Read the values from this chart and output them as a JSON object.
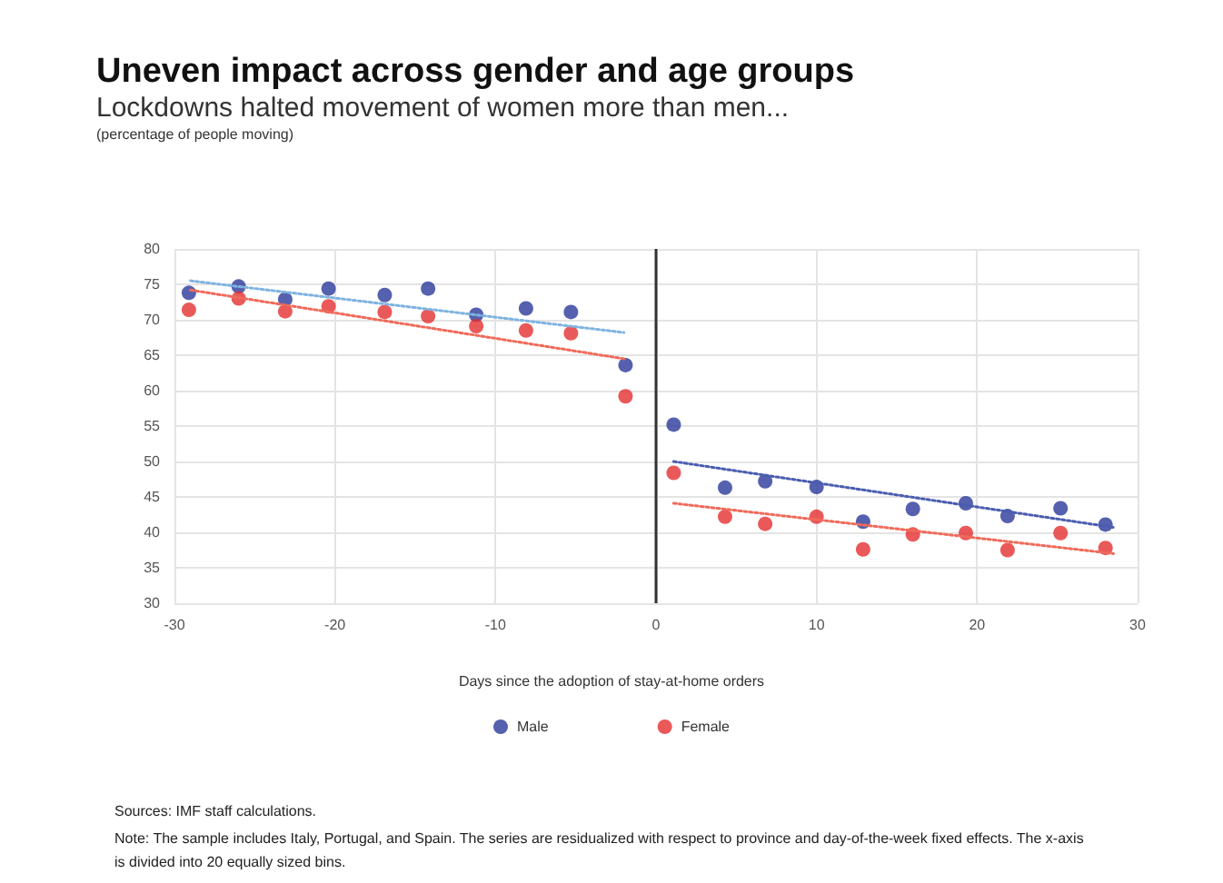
{
  "chart_data": {
    "type": "scatter",
    "title": "Uneven impact across gender and age groups",
    "subtitle": "Lockdowns halted movement of women more than men...",
    "xlabel": "Days since the adoption of stay-at-home orders",
    "annotations": [
      "(percentage of people moving)",
      "Sources: IMF staff calculations.",
      "Note: The sample includes Italy, Portugal, and Spain. The series are residualized with respect to province and day-of-the-week fixed effects. The x-axis is divided into 20 equally sized bins."
    ],
    "series": [
      {
        "name": "Male",
        "color": "#2b3a9a",
        "x": [
          -29.1,
          -26.0,
          -23.1,
          -20.4,
          -16.9,
          -14.2,
          -11.2,
          -8.1,
          -5.3,
          -1.9,
          1.1,
          4.3,
          6.8,
          10.0,
          12.9,
          16.0,
          19.3,
          21.9,
          25.2,
          28.0
        ],
        "values": [
          73.8,
          74.7,
          72.9,
          74.4,
          73.5,
          74.4,
          70.7,
          71.6,
          71.1,
          63.6,
          55.2,
          46.3,
          47.2,
          46.4,
          41.5,
          43.3,
          44.1,
          42.3,
          43.4,
          41.1
        ]
      },
      {
        "name": "Female",
        "color": "#e53030",
        "x": [
          -29.1,
          -26.0,
          -23.1,
          -20.4,
          -16.9,
          -14.2,
          -11.2,
          -8.1,
          -5.3,
          -1.9,
          1.1,
          4.3,
          6.8,
          10.0,
          12.9,
          16.0,
          19.3,
          21.9,
          25.2,
          28.0
        ],
        "values": [
          71.4,
          73.0,
          71.2,
          71.9,
          71.1,
          70.5,
          69.1,
          68.5,
          68.1,
          59.2,
          48.4,
          42.2,
          41.2,
          42.2,
          37.6,
          39.7,
          39.9,
          37.5,
          39.9,
          37.8
        ]
      },
      {
        "type": "line",
        "color": "#7fb3e0",
        "line_style": "dotted",
        "marker": "none",
        "x": [
          -29,
          -2
        ],
        "values": [
          75.5,
          68.2
        ]
      },
      {
        "type": "line",
        "color": "#f06a5a",
        "line_style": "dotted",
        "marker": "none",
        "x": [
          -29,
          -2
        ],
        "values": [
          74.2,
          64.5
        ]
      },
      {
        "type": "line",
        "color": "#4a5db0",
        "line_style": "dotted",
        "marker": "none",
        "x": [
          1.1,
          28.5
        ],
        "values": [
          50.0,
          40.7
        ]
      },
      {
        "type": "line",
        "color": "#f06a5a",
        "line_style": "dotted",
        "marker": "none",
        "x": [
          1.1,
          28.5
        ],
        "values": [
          44.1,
          37.0
        ]
      }
    ],
    "xlim": [
      -30,
      30
    ],
    "xticks": [
      -30,
      -20,
      -10,
      0,
      10,
      20,
      30
    ],
    "ylim": [
      30,
      80
    ],
    "yticks": [
      30,
      35,
      40,
      45,
      50,
      55,
      60,
      65,
      70,
      75,
      80
    ],
    "ref_lines": [
      {
        "axis": "x",
        "value": 0,
        "color": "#333333",
        "line_style": "solid"
      }
    ],
    "grid": true,
    "legend": "bottom",
    "marker": "circle"
  }
}
